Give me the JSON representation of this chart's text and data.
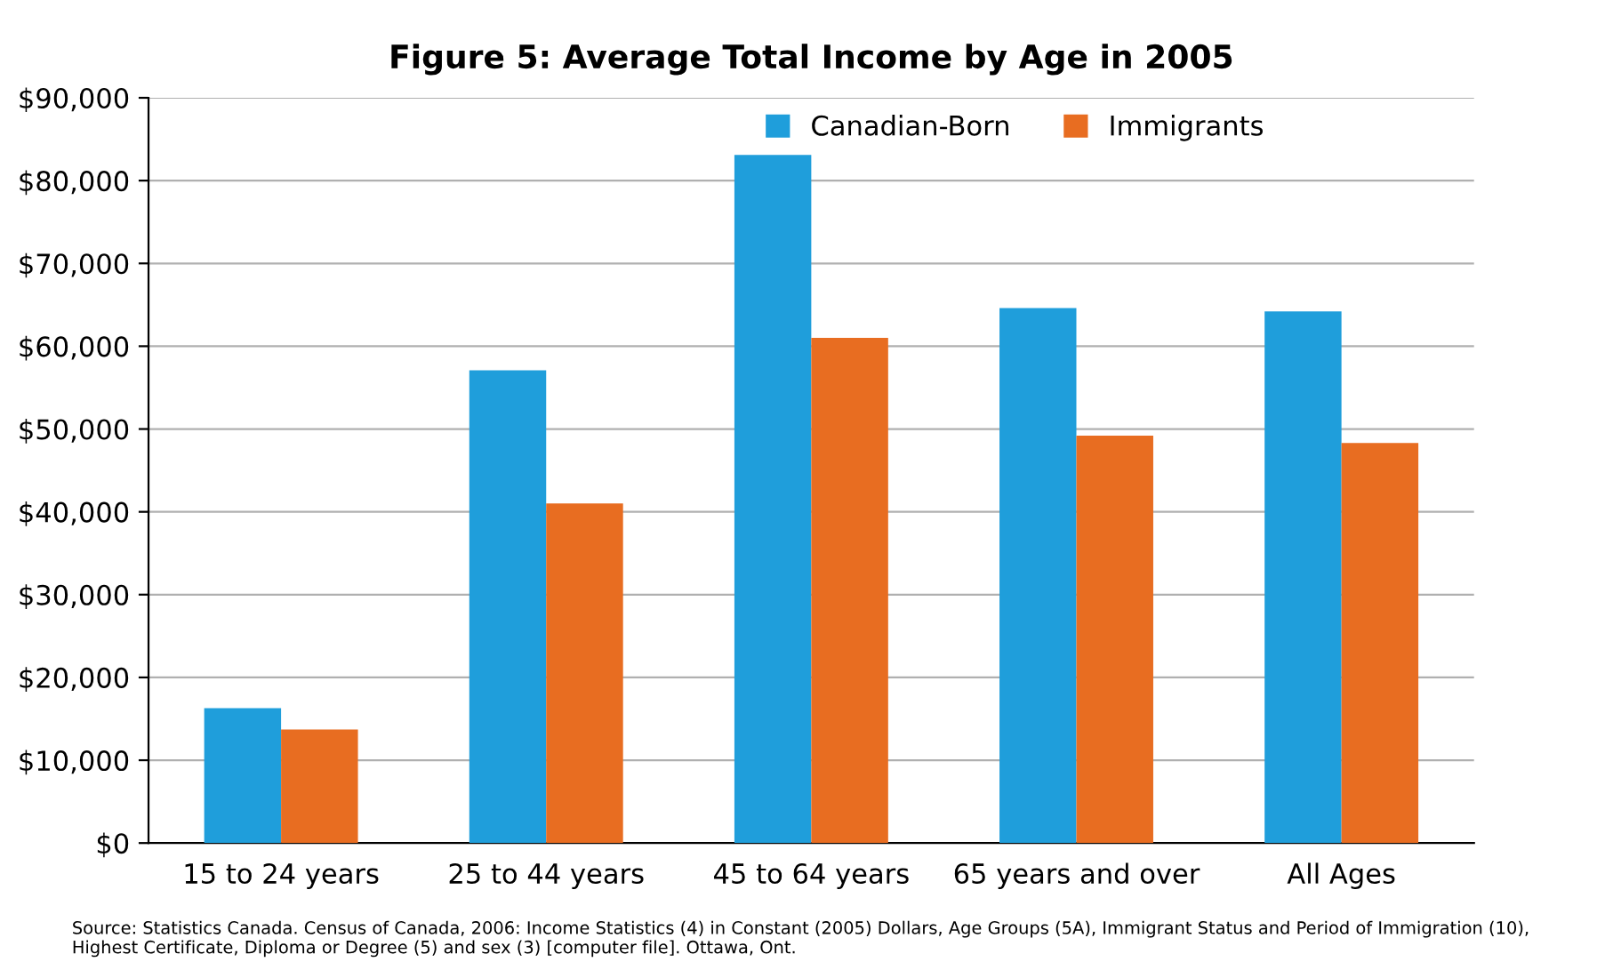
{
  "chart_data": {
    "type": "bar",
    "title": "Figure 5: Average Total Income by Age in 2005",
    "categories": [
      "15 to 24 years",
      "25 to 44 years",
      "45 to 64 years",
      "65 years and over",
      "All Ages"
    ],
    "series": [
      {
        "name": "Canadian-Born",
        "color": "#1f9edb",
        "values": [
          16300,
          57100,
          83100,
          64600,
          64200
        ]
      },
      {
        "name": "Immigrants",
        "color": "#e86d21",
        "values": [
          13700,
          41000,
          61000,
          49200,
          48300
        ]
      }
    ],
    "ylim": [
      0,
      90000
    ],
    "yticks": [
      {
        "value": 0,
        "label": "$0"
      },
      {
        "value": 10000,
        "label": "$10,000"
      },
      {
        "value": 20000,
        "label": "$20,000"
      },
      {
        "value": 30000,
        "label": "$30,000"
      },
      {
        "value": 40000,
        "label": "$40,000"
      },
      {
        "value": 50000,
        "label": "$50,000"
      },
      {
        "value": 60000,
        "label": "$60,000"
      },
      {
        "value": 70000,
        "label": "$70,000"
      },
      {
        "value": 80000,
        "label": "$80,000"
      },
      {
        "value": 90000,
        "label": "$90,000"
      }
    ],
    "grid": "y",
    "legend": "top right",
    "annotations": [
      "Source: Statistics Canada. Census of Canada, 2006: Income Statistics (4) in Constant (2005) Dollars, Age Groups (5A), Immigrant Status and Period of Immigration (10), Highest Certificate, Diploma or Degree (5) and sex (3) [computer file]. Ottawa, Ont."
    ]
  }
}
